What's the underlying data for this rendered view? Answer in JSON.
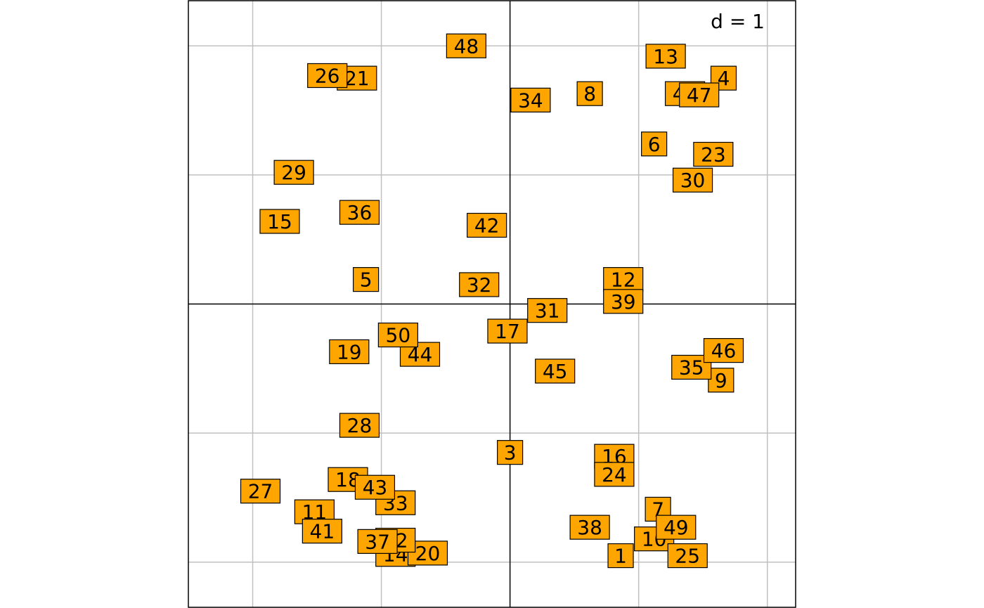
{
  "chart_data": {
    "type": "scatter",
    "scale_label": "d = 1",
    "label_fill": "#FFA500",
    "xlim": [
      -2.5,
      2.22
    ],
    "ylim": [
      -2.35,
      2.35
    ],
    "gridlines_x": [
      -2,
      -1,
      0,
      1,
      2
    ],
    "gridlines_y": [
      -2,
      -1,
      0,
      1,
      2
    ],
    "grid": true,
    "points": [
      {
        "label": "1",
        "x": 0.86,
        "y": -1.95
      },
      {
        "label": "3",
        "x": 0.0,
        "y": -1.15
      },
      {
        "label": "4",
        "x": 1.66,
        "y": 1.75
      },
      {
        "label": "5",
        "x": -1.12,
        "y": 0.19
      },
      {
        "label": "6",
        "x": 1.12,
        "y": 1.24
      },
      {
        "label": "7",
        "x": 1.15,
        "y": -1.59
      },
      {
        "label": "8",
        "x": 0.62,
        "y": 1.63
      },
      {
        "label": "9",
        "x": 1.64,
        "y": -0.59
      },
      {
        "label": "10",
        "x": 1.12,
        "y": -1.82
      },
      {
        "label": "11",
        "x": -1.52,
        "y": -1.61
      },
      {
        "label": "12",
        "x": 0.88,
        "y": 0.19
      },
      {
        "label": "13",
        "x": 1.21,
        "y": 1.92
      },
      {
        "label": "14",
        "x": -0.89,
        "y": -1.94
      },
      {
        "label": "15",
        "x": -1.79,
        "y": 0.64
      },
      {
        "label": "16",
        "x": 0.81,
        "y": -1.18
      },
      {
        "label": "17",
        "x": -0.02,
        "y": -0.21
      },
      {
        "label": "18",
        "x": -1.26,
        "y": -1.36
      },
      {
        "label": "19",
        "x": -1.25,
        "y": -0.37
      },
      {
        "label": "20",
        "x": -0.64,
        "y": -1.93
      },
      {
        "label": "21",
        "x": -1.19,
        "y": 1.75
      },
      {
        "label": "22",
        "x": -0.89,
        "y": -1.83
      },
      {
        "label": "23",
        "x": 1.58,
        "y": 1.16
      },
      {
        "label": "24",
        "x": 0.81,
        "y": -1.32
      },
      {
        "label": "25",
        "x": 1.38,
        "y": -1.95
      },
      {
        "label": "26",
        "x": -1.42,
        "y": 1.77
      },
      {
        "label": "27",
        "x": -1.94,
        "y": -1.45
      },
      {
        "label": "28",
        "x": -1.17,
        "y": -0.94
      },
      {
        "label": "29",
        "x": -1.68,
        "y": 1.02
      },
      {
        "label": "30",
        "x": 1.42,
        "y": 0.96
      },
      {
        "label": "31",
        "x": 0.29,
        "y": -0.05
      },
      {
        "label": "32",
        "x": -0.24,
        "y": 0.15
      },
      {
        "label": "33",
        "x": -0.89,
        "y": -1.54
      },
      {
        "label": "34",
        "x": 0.16,
        "y": 1.58
      },
      {
        "label": "35",
        "x": 1.41,
        "y": -0.49
      },
      {
        "label": "36",
        "x": -1.17,
        "y": 0.71
      },
      {
        "label": "37",
        "x": -1.03,
        "y": -1.84
      },
      {
        "label": "38",
        "x": 0.62,
        "y": -1.73
      },
      {
        "label": "39",
        "x": 0.88,
        "y": 0.02
      },
      {
        "label": "40",
        "x": 1.36,
        "y": 1.63
      },
      {
        "label": "41",
        "x": -1.46,
        "y": -1.76
      },
      {
        "label": "42",
        "x": -0.18,
        "y": 0.61
      },
      {
        "label": "43",
        "x": -1.05,
        "y": -1.42
      },
      {
        "label": "44",
        "x": -0.7,
        "y": -0.39
      },
      {
        "label": "45",
        "x": 0.35,
        "y": -0.52
      },
      {
        "label": "46",
        "x": 1.66,
        "y": -0.36
      },
      {
        "label": "47",
        "x": 1.47,
        "y": 1.62
      },
      {
        "label": "48",
        "x": -0.34,
        "y": 2.0
      },
      {
        "label": "49",
        "x": 1.29,
        "y": -1.73
      },
      {
        "label": "50",
        "x": -0.87,
        "y": -0.24
      }
    ]
  }
}
